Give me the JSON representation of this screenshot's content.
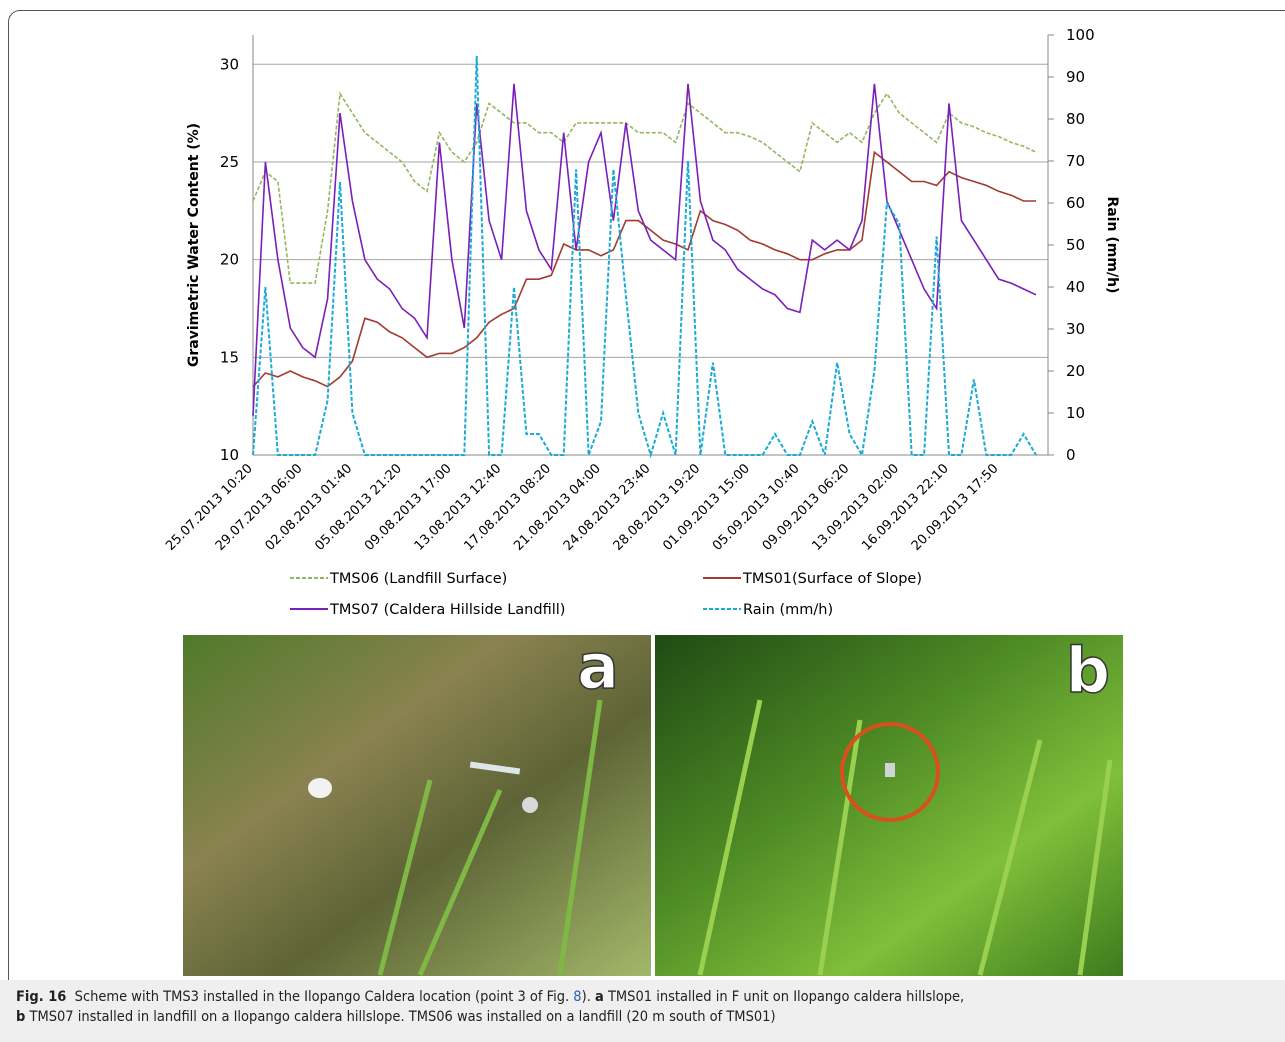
{
  "chart_data": {
    "type": "line",
    "y_label": "Gravimetric Water Content (%)",
    "y2_label": "Rain (mm/h)",
    "categories": [
      "25.07.2013 10:20",
      null,
      null,
      null,
      "29.07.2013 06:00",
      null,
      null,
      null,
      "02.08.2013 01:40",
      null,
      null,
      null,
      "05.08.2013 21:20",
      null,
      null,
      null,
      "09.08.2013 17:00",
      null,
      null,
      null,
      "13.08.2013 12:40",
      null,
      null,
      null,
      "17.08.2013 08:20",
      null,
      null,
      null,
      "21.08.2013 04:00",
      null,
      null,
      null,
      "24.08.2013 23:40",
      null,
      null,
      null,
      "28.08.2013 19:20",
      null,
      null,
      null,
      "01.09.2013 15:00",
      null,
      null,
      null,
      "05.09.2013 10:40",
      null,
      null,
      null,
      "09.09.2013 06:20",
      null,
      null,
      null,
      "13.09.2013 02:00",
      null,
      null,
      null,
      "16.09.2013 22:10",
      null,
      null,
      null,
      "20.09.2013 17:50",
      null,
      null,
      null
    ],
    "ylim": [
      10,
      31.5
    ],
    "yticks": [
      10,
      15,
      20,
      25,
      30
    ],
    "y2lim": [
      0,
      100
    ],
    "y2ticks": [
      0,
      10,
      20,
      30,
      40,
      50,
      60,
      70,
      80,
      90,
      100
    ],
    "grid": true,
    "series": [
      {
        "name": "TMS06 (Landfill Surface)",
        "color": "#93b760",
        "dashed": true,
        "values": [
          23,
          24.5,
          24,
          18.8,
          18.8,
          18.8,
          22.5,
          28.5,
          27.5,
          26.5,
          26,
          25.5,
          25,
          24,
          23.5,
          26.5,
          25.5,
          25,
          26,
          28,
          27.5,
          27,
          27,
          26.5,
          26.5,
          26,
          27,
          27,
          27,
          27,
          27,
          26.5,
          26.5,
          26.5,
          26,
          28,
          27.5,
          27,
          26.5,
          26.5,
          26.3,
          26,
          25.5,
          25,
          24.5,
          27,
          26.5,
          26,
          26.5,
          26,
          27.5,
          28.5,
          27.5,
          27,
          26.5,
          26,
          27.5,
          27,
          26.8,
          26.5,
          26.3,
          26,
          25.8,
          25.5
        ]
      },
      {
        "name": "TMS01(Surface of Slope)",
        "color": "#a33a30",
        "dashed": false,
        "values": [
          13.5,
          14.2,
          14,
          14.3,
          14,
          13.8,
          13.5,
          14,
          14.8,
          17,
          16.8,
          16.3,
          16,
          15.5,
          15,
          15.2,
          15.2,
          15.5,
          16,
          16.8,
          17.2,
          17.5,
          19,
          19,
          19.2,
          20.8,
          20.5,
          20.5,
          20.2,
          20.5,
          22,
          22,
          21.5,
          21,
          20.8,
          20.5,
          22.5,
          22,
          21.8,
          21.5,
          21,
          20.8,
          20.5,
          20.3,
          20,
          20,
          20.3,
          20.5,
          20.5,
          21,
          25.5,
          25,
          24.5,
          24,
          24,
          23.8,
          24.5,
          24.2,
          24,
          23.8,
          23.5,
          23.3,
          23,
          23
        ]
      },
      {
        "name": "TMS07 (Caldera Hillside Landfill)",
        "color": "#7a1fb8",
        "dashed": false,
        "values": [
          12,
          25,
          20,
          16.5,
          15.5,
          15,
          18,
          27.5,
          23,
          20,
          19,
          18.5,
          17.5,
          17,
          16,
          26,
          20,
          16.5,
          28,
          22,
          20,
          29,
          22.5,
          20.5,
          19.5,
          26.5,
          20.5,
          25,
          26.5,
          22,
          27,
          22.5,
          21,
          20.5,
          20,
          29,
          23,
          21,
          20.5,
          19.5,
          19,
          18.5,
          18.2,
          17.5,
          17.3,
          21,
          20.5,
          21,
          20.5,
          22,
          29,
          23,
          21.5,
          20,
          18.5,
          17.5,
          28,
          22,
          21,
          20,
          19,
          18.8,
          18.5,
          18.2
        ]
      },
      {
        "name": "Rain (mm/h)",
        "color": "#1aaad6",
        "dashed": true,
        "axis": "y2",
        "values": [
          0,
          40,
          0,
          0,
          0,
          0,
          13,
          65,
          10,
          0,
          0,
          0,
          0,
          0,
          0,
          0,
          0,
          0,
          95,
          0,
          0,
          40,
          5,
          5,
          0,
          0,
          68,
          0,
          8,
          68,
          38,
          10,
          0,
          10,
          0,
          70,
          0,
          22,
          0,
          0,
          0,
          0,
          5,
          0,
          0,
          8,
          0,
          22,
          5,
          0,
          20,
          60,
          55,
          0,
          0,
          52,
          0,
          0,
          18,
          0,
          0,
          0,
          5,
          0
        ]
      }
    ],
    "legend_position": "bottom"
  },
  "photos": {
    "labels": [
      "a",
      "b"
    ]
  },
  "caption": {
    "label": "Fig. 16",
    "text1": "Scheme with TMS3 installed in the Ilopango Caldera location (point 3 of Fig. ",
    "link": "8",
    "text2": "). ",
    "bold_a": "a",
    "text3": "TMS01 installed in F unit on Ilopango caldera hillslope,",
    "bold_b": "b",
    "text4": "TMS07 installed in landfill on a Ilopango caldera hillslope. TMS06 was installed on a landfill (20 m south of TMS01)"
  }
}
